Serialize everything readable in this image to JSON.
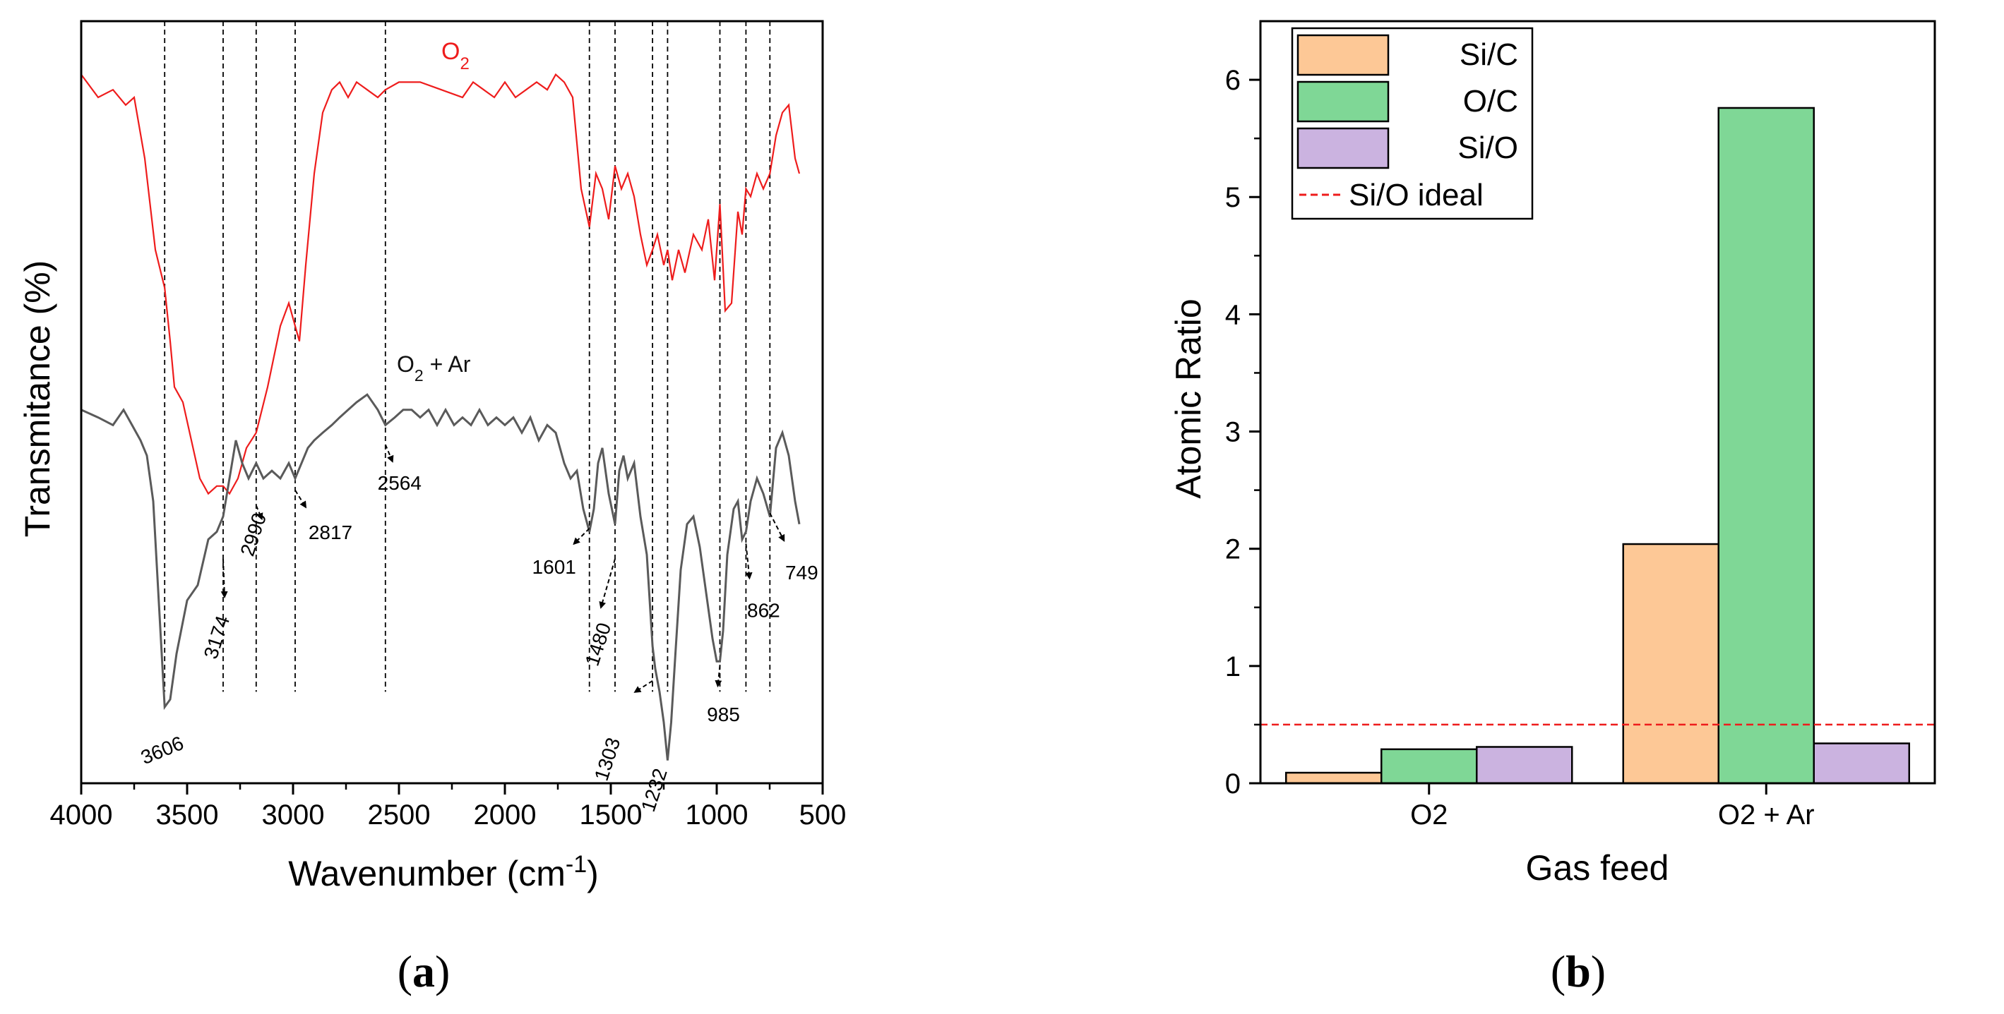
{
  "chart_data": [
    {
      "type": "line",
      "panel_label": "a",
      "title": "",
      "xlabel": "Wavenumber (cm",
      "xlabel_sup": "-1",
      "xlabel_end": ")",
      "ylabel": "Transmitance (%)",
      "xlim": [
        4000,
        500
      ],
      "ylim": [
        0,
        100
      ],
      "x_ticks": [
        4000,
        3500,
        3000,
        2500,
        2000,
        1500,
        1000,
        500
      ],
      "series": [
        {
          "name": "O2",
          "label_main": "O",
          "label_sub": "2",
          "label_rest": "",
          "color": "#ee1c1c",
          "x": [
            4000,
            3920,
            3850,
            3790,
            3750,
            3700,
            3650,
            3606,
            3580,
            3560,
            3520,
            3480,
            3440,
            3400,
            3360,
            3330,
            3300,
            3260,
            3220,
            3174,
            3120,
            3060,
            3020,
            2990,
            2970,
            2940,
            2900,
            2860,
            2817,
            2780,
            2740,
            2700,
            2650,
            2600,
            2564,
            2500,
            2400,
            2300,
            2200,
            2150,
            2100,
            2050,
            2000,
            1950,
            1900,
            1850,
            1800,
            1760,
            1720,
            1680,
            1640,
            1601,
            1570,
            1540,
            1510,
            1480,
            1450,
            1420,
            1390,
            1360,
            1330,
            1303,
            1280,
            1250,
            1232,
            1210,
            1180,
            1150,
            1110,
            1070,
            1040,
            1010,
            985,
            960,
            930,
            900,
            880,
            862,
            840,
            810,
            780,
            749,
            720,
            690,
            660,
            630,
            610
          ],
          "y": [
            93,
            90,
            91,
            89,
            90,
            82,
            70,
            65,
            58,
            52,
            50,
            45,
            40,
            38,
            39,
            39,
            38,
            40,
            44,
            46,
            52,
            60,
            63,
            60,
            58,
            68,
            80,
            88,
            91,
            92,
            90,
            92,
            91,
            90,
            91,
            92,
            92,
            91,
            90,
            92,
            91,
            90,
            92,
            90,
            91,
            92,
            91,
            93,
            92,
            90,
            78,
            73,
            80,
            78,
            74,
            81,
            78,
            80,
            77,
            72,
            68,
            70,
            72,
            68,
            70,
            66,
            70,
            67,
            72,
            70,
            74,
            66,
            76,
            62,
            63,
            75,
            72,
            78,
            77,
            80,
            78,
            80,
            85,
            88,
            89,
            82,
            80
          ]
        },
        {
          "name": "O2 + Ar",
          "label_main": "O",
          "label_sub": "2",
          "label_rest": " + Ar",
          "color": "#5a5a5a",
          "x": [
            4000,
            3920,
            3850,
            3800,
            3760,
            3720,
            3690,
            3660,
            3630,
            3606,
            3580,
            3550,
            3500,
            3450,
            3400,
            3360,
            3330,
            3300,
            3270,
            3240,
            3210,
            3174,
            3140,
            3100,
            3060,
            3020,
            2990,
            2960,
            2930,
            2900,
            2860,
            2817,
            2780,
            2740,
            2700,
            2650,
            2600,
            2564,
            2520,
            2480,
            2440,
            2400,
            2360,
            2320,
            2280,
            2240,
            2200,
            2160,
            2120,
            2080,
            2040,
            2000,
            1960,
            1920,
            1880,
            1840,
            1800,
            1760,
            1720,
            1690,
            1660,
            1630,
            1601,
            1580,
            1560,
            1540,
            1510,
            1480,
            1460,
            1440,
            1420,
            1390,
            1360,
            1330,
            1303,
            1290,
            1270,
            1250,
            1232,
            1215,
            1195,
            1170,
            1140,
            1110,
            1080,
            1050,
            1020,
            1000,
            985,
            970,
            950,
            920,
            900,
            880,
            862,
            840,
            810,
            780,
            749,
            720,
            690,
            660,
            630,
            610
          ],
          "y": [
            49,
            48,
            47,
            49,
            47,
            45,
            43,
            37,
            22,
            10,
            11,
            17,
            24,
            26,
            32,
            33,
            35,
            40,
            45,
            42,
            40,
            42,
            40,
            41,
            40,
            42,
            40,
            42,
            44,
            45,
            46,
            47,
            48,
            49,
            50,
            51,
            49,
            47,
            48,
            49,
            49,
            48,
            49,
            47,
            49,
            47,
            48,
            47,
            49,
            47,
            48,
            47,
            48,
            46,
            48,
            45,
            47,
            46,
            42,
            40,
            41,
            36,
            33,
            36,
            42,
            44,
            38,
            34,
            41,
            43,
            40,
            42,
            35,
            30,
            18,
            15,
            12,
            8,
            3,
            8,
            17,
            28,
            34,
            35,
            31,
            25,
            19,
            16,
            16,
            20,
            30,
            36,
            37,
            32,
            33,
            37,
            40,
            38,
            35,
            44,
            46,
            43,
            37,
            34
          ]
        }
      ],
      "vlines": [
        3606,
        3330,
        3174,
        2990,
        2564,
        1601,
        1480,
        1303,
        1232,
        985,
        862,
        749
      ],
      "annotations": [
        {
          "label": "3606",
          "x": 3606,
          "y": 10
        },
        {
          "label": "3174",
          "x": 3330,
          "y": 30
        },
        {
          "label": "2990",
          "x": 3174,
          "y": 37
        },
        {
          "label": "2817",
          "x": 2990,
          "y": 39
        },
        {
          "label": "2564",
          "x": 2564,
          "y": 45
        },
        {
          "label": "1601",
          "x": 1601,
          "y": 34
        },
        {
          "label": "1480",
          "x": 1480,
          "y": 30
        },
        {
          "label": "1303",
          "x": 1303,
          "y": 14
        },
        {
          "label": "1232",
          "x": 1232,
          "y": 3
        },
        {
          "label": "985",
          "x": 985,
          "y": 16
        },
        {
          "label": "862",
          "x": 862,
          "y": 32
        },
        {
          "label": "749",
          "x": 749,
          "y": 36
        }
      ]
    },
    {
      "type": "bar",
      "panel_label": "b",
      "title": "",
      "xlabel": "Gas feed",
      "ylabel": "Atomic Ratio",
      "categories": [
        "O2",
        "O2 + Ar"
      ],
      "series": [
        {
          "name": "Si/C",
          "color": "#fdc896",
          "values": [
            0.09,
            2.04
          ]
        },
        {
          "name": "O/C",
          "color": "#7fd796",
          "values": [
            0.29,
            5.76
          ]
        },
        {
          "name": "Si/O",
          "color": "#cbb3e0",
          "values": [
            0.31,
            0.34
          ]
        }
      ],
      "reference_line": {
        "name": "Si/O ideal",
        "value": 0.5,
        "color": "#ee1c1c"
      },
      "ylim": [
        0,
        6.5
      ],
      "y_ticks": [
        0,
        1,
        2,
        3,
        4,
        5,
        6
      ],
      "legend_position": "top-left"
    }
  ]
}
